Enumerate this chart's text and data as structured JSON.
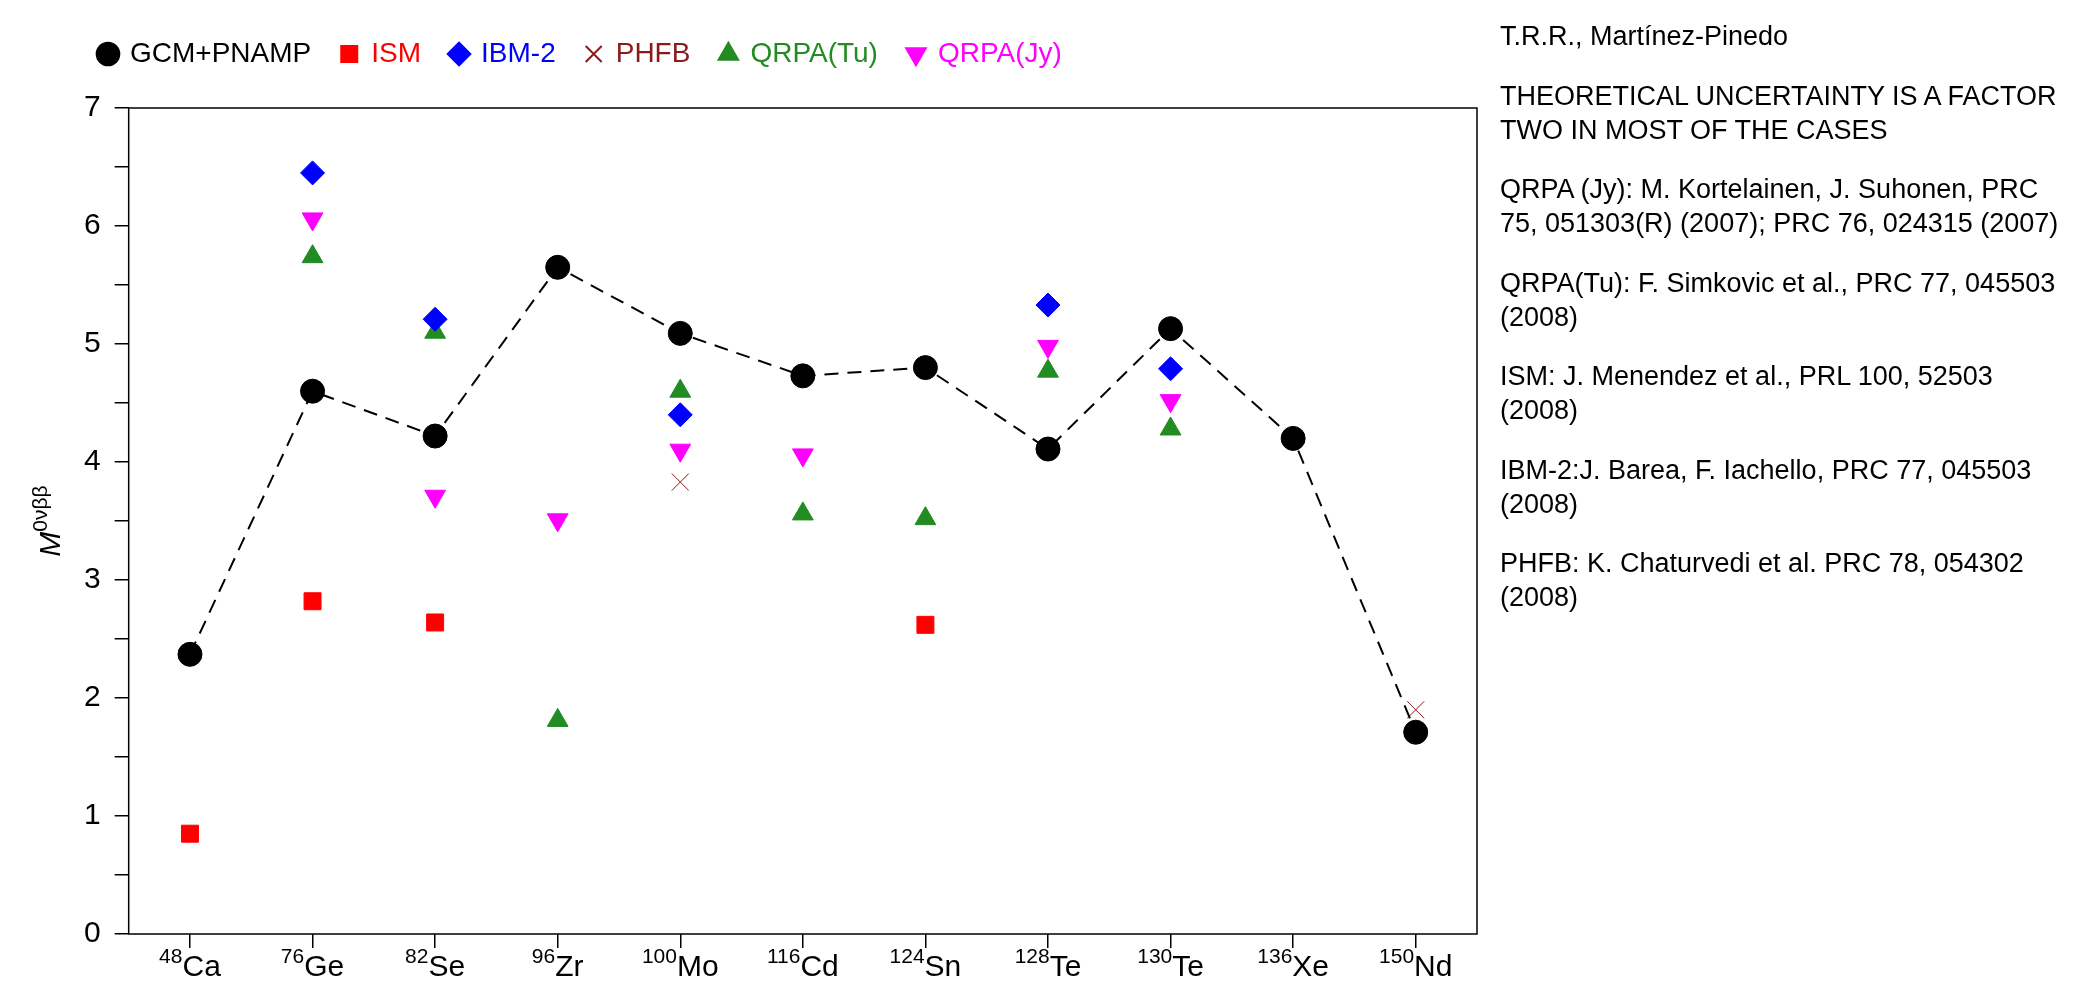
{
  "chart_data": {
    "type": "scatter",
    "ylabel": "M$^{0νββ}$",
    "categories": [
      "$^{48}$Ca",
      "$^{76}$Ge",
      "$^{82}$Se",
      "$^{96}$Zr",
      "$^{100}$Mo",
      "$^{116}$Cd",
      "$^{124}$Sn",
      "$^{128}$Te",
      "$^{130}$Te",
      "$^{136}$Xe",
      "$^{150}$Nd"
    ],
    "series": [
      {
        "name": "GCM+PNAMP",
        "type": "line",
        "line_style": "dashed",
        "marker": "circle",
        "color": "#000000",
        "values": [
          2.37,
          4.6,
          4.22,
          5.65,
          5.09,
          4.73,
          4.8,
          4.11,
          5.13,
          4.2,
          1.71
        ]
      },
      {
        "name": "ISM",
        "marker": "square",
        "color": "#ff0000",
        "values": [
          0.85,
          2.82,
          2.64,
          null,
          null,
          null,
          2.62,
          null,
          null,
          null,
          null
        ]
      },
      {
        "name": "IBM-2",
        "marker": "diamond",
        "color": "#0000ff",
        "values": [
          null,
          6.45,
          5.21,
          null,
          4.4,
          null,
          null,
          5.33,
          4.79,
          null,
          null
        ]
      },
      {
        "name": "PHFB",
        "marker": "cross",
        "color": "#8b1a1a",
        "values": [
          null,
          null,
          null,
          null,
          3.83,
          null,
          null,
          null,
          null,
          null,
          1.9
        ]
      },
      {
        "name": "QRPA(Tu)",
        "marker": "triangle",
        "color": "#228b22",
        "values": [
          null,
          5.74,
          5.1,
          1.81,
          4.6,
          3.56,
          3.52,
          4.77,
          4.28,
          null,
          null
        ]
      },
      {
        "name": "QRPA(Jy)",
        "marker": "triangle-down",
        "color": "#ff00ff",
        "values": [
          null,
          6.06,
          3.71,
          3.51,
          4.1,
          4.06,
          null,
          4.98,
          4.52,
          null,
          null
        ]
      }
    ],
    "ylim": [
      0,
      7
    ],
    "yticks": [
      0,
      {
        "value": 0.5,
        "label": null
      },
      1,
      {
        "value": 1.5,
        "label": null
      },
      2,
      {
        "value": 2.5,
        "label": null
      },
      3,
      {
        "value": 3.5,
        "label": null
      },
      4,
      {
        "value": 4.5,
        "label": null
      },
      5,
      {
        "value": 5.5,
        "label": null
      },
      6,
      {
        "value": 6.5,
        "label": null
      },
      7
    ],
    "grid": false,
    "legend": "top left",
    "annotations": [
      "T.R.R., Martínez-Pinedo",
      "THEORETICAL UNCERTAINTY IS A FACTOR TWO IN MOST OF THE CASES",
      "QRPA (Jy): M. Kortelainen, J. Suhonen, PRC 75, 051303(R) (2007); PRC 76, 024315 (2007)",
      "QRPA(Tu): F. Simkovic et al., PRC 77, 045503 (2008)",
      "ISM: J. Menendez et al., PRL 100, 52503 (2008)",
      "IBM-2:J. Barea, F. Iachello, PRC 77, 045503 (2008)",
      "PHFB: K. Chaturvedi et al. PRC 78, 054302 (2008)"
    ]
  }
}
